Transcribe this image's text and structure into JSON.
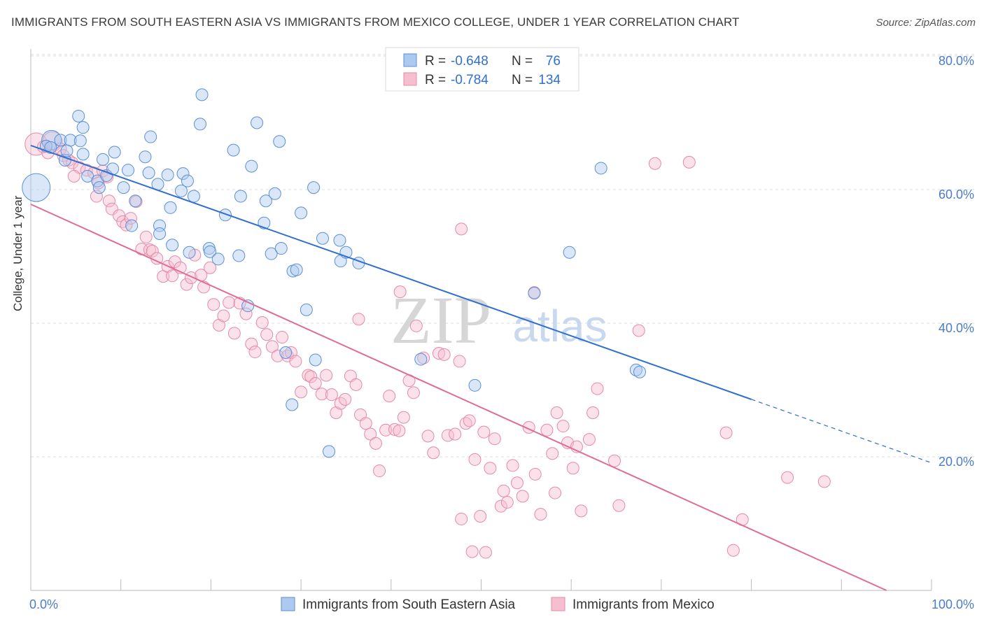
{
  "title": "IMMIGRANTS FROM SOUTH EASTERN ASIA VS IMMIGRANTS FROM MEXICO COLLEGE, UNDER 1 YEAR CORRELATION CHART",
  "source": "Source: ZipAtlas.com",
  "watermark": {
    "zip": "ZIP",
    "atlas": "atlas"
  },
  "colors": {
    "blue": "#5b8fd6",
    "blue_fill": "#aec9ef",
    "blue_line": "#2f6fcf",
    "pink": "#e48aa8",
    "pink_fill": "#f6bfd0",
    "pink_line": "#e06c96",
    "axis_text": "#4a7cc7",
    "grid": "#dddddd"
  },
  "legend_box": {
    "rows": [
      {
        "r_label": "R = ",
        "r_value": "-0.648",
        "n_label": "N = ",
        "n_value": "76"
      },
      {
        "r_label": "R = ",
        "r_value": "-0.784",
        "n_label": "N = ",
        "n_value": "134"
      }
    ]
  },
  "chart_data": {
    "type": "scatter",
    "xlabel": "",
    "ylabel": "College, Under 1 year",
    "xlim": [
      0,
      100
    ],
    "ylim": [
      0,
      85
    ],
    "x_tick_labels": [
      "0.0%",
      "100.0%"
    ],
    "y_ticks": [
      20,
      40,
      60,
      80
    ],
    "y_tick_labels": [
      "20.0%",
      "40.0%",
      "60.0%",
      "80.0%"
    ],
    "grid": true,
    "legend_position": "bottom",
    "series": [
      {
        "name": "Immigrants from South Eastern Asia",
        "color": "#5b8fd6",
        "trend": {
          "x0": 0,
          "y0": 66.6,
          "x1": 80,
          "y1": 28.6,
          "dash_to_x": 100,
          "dash_to_y": 19.1
        },
        "points": [
          {
            "x": 0.6,
            "y": 60.3,
            "s": 20
          },
          {
            "x": 2.3,
            "y": 67.4,
            "s": 14
          },
          {
            "x": 1.7,
            "y": 66.5
          },
          {
            "x": 3.3,
            "y": 67.4
          },
          {
            "x": 4.4,
            "y": 67.4
          },
          {
            "x": 3.8,
            "y": 64.4
          },
          {
            "x": 4.0,
            "y": 65.8
          },
          {
            "x": 5.8,
            "y": 69.3
          },
          {
            "x": 5.5,
            "y": 67.3
          },
          {
            "x": 5.3,
            "y": 71.0
          },
          {
            "x": 5.8,
            "y": 65.3
          },
          {
            "x": 6.3,
            "y": 62.0
          },
          {
            "x": 7.4,
            "y": 61.3
          },
          {
            "x": 7.6,
            "y": 60.3
          },
          {
            "x": 8.4,
            "y": 62.1
          },
          {
            "x": 8.0,
            "y": 64.5
          },
          {
            "x": 9.3,
            "y": 65.6
          },
          {
            "x": 9.1,
            "y": 63.1
          },
          {
            "x": 10.8,
            "y": 62.9
          },
          {
            "x": 10.3,
            "y": 60.3
          },
          {
            "x": 11.6,
            "y": 58.3
          },
          {
            "x": 12.7,
            "y": 64.9
          },
          {
            "x": 13.1,
            "y": 62.5
          },
          {
            "x": 13.3,
            "y": 67.9
          },
          {
            "x": 14.1,
            "y": 60.8
          },
          {
            "x": 14.3,
            "y": 54.6
          },
          {
            "x": 15.2,
            "y": 62.2
          },
          {
            "x": 15.5,
            "y": 57.3
          },
          {
            "x": 15.7,
            "y": 51.7
          },
          {
            "x": 16.7,
            "y": 59.8
          },
          {
            "x": 16.9,
            "y": 62.4
          },
          {
            "x": 17.4,
            "y": 61.3
          },
          {
            "x": 17.6,
            "y": 50.6
          },
          {
            "x": 18.1,
            "y": 59.0
          },
          {
            "x": 19.0,
            "y": 74.2
          },
          {
            "x": 18.8,
            "y": 69.8
          },
          {
            "x": 19.8,
            "y": 51.2
          },
          {
            "x": 19.9,
            "y": 50.7
          },
          {
            "x": 20.8,
            "y": 49.6
          },
          {
            "x": 21.6,
            "y": 56.2
          },
          {
            "x": 22.5,
            "y": 65.9
          },
          {
            "x": 23.1,
            "y": 50.1
          },
          {
            "x": 23.3,
            "y": 59.0
          },
          {
            "x": 24.5,
            "y": 63.5
          },
          {
            "x": 25.1,
            "y": 70.0
          },
          {
            "x": 25.9,
            "y": 55.0
          },
          {
            "x": 26.1,
            "y": 58.3
          },
          {
            "x": 26.7,
            "y": 50.4
          },
          {
            "x": 27.1,
            "y": 59.4
          },
          {
            "x": 27.8,
            "y": 51.2
          },
          {
            "x": 27.6,
            "y": 67.2
          },
          {
            "x": 29.1,
            "y": 47.8
          },
          {
            "x": 29.5,
            "y": 48.0
          },
          {
            "x": 30.0,
            "y": 56.5
          },
          {
            "x": 30.6,
            "y": 42.0
          },
          {
            "x": 31.4,
            "y": 60.3
          },
          {
            "x": 32.4,
            "y": 52.7
          },
          {
            "x": 34.3,
            "y": 52.4
          },
          {
            "x": 34.4,
            "y": 49.3
          },
          {
            "x": 35.0,
            "y": 50.6
          },
          {
            "x": 36.4,
            "y": 49.0
          },
          {
            "x": 24.1,
            "y": 42.6
          },
          {
            "x": 28.3,
            "y": 35.6
          },
          {
            "x": 29.0,
            "y": 27.8
          },
          {
            "x": 31.6,
            "y": 34.5
          },
          {
            "x": 33.1,
            "y": 20.8
          },
          {
            "x": 43.3,
            "y": 34.6
          },
          {
            "x": 49.3,
            "y": 30.7
          },
          {
            "x": 55.9,
            "y": 44.5
          },
          {
            "x": 59.8,
            "y": 50.6
          },
          {
            "x": 63.3,
            "y": 63.2
          },
          {
            "x": 67.2,
            "y": 33.0
          },
          {
            "x": 67.6,
            "y": 32.7
          },
          {
            "x": 14.3,
            "y": 53.4
          },
          {
            "x": 2.2,
            "y": 66.3
          },
          {
            "x": 11.2,
            "y": 54.6
          }
        ]
      },
      {
        "name": "Immigrants from Mexico",
        "color": "#e48aa8",
        "trend": {
          "x0": 0,
          "y0": 57.8,
          "x1": 95,
          "y1": 0
        },
        "points": [
          {
            "x": 0.6,
            "y": 66.8,
            "s": 16
          },
          {
            "x": 1.4,
            "y": 66.4
          },
          {
            "x": 2.4,
            "y": 67.2,
            "s": 14
          },
          {
            "x": 1.9,
            "y": 65.5
          },
          {
            "x": 3.3,
            "y": 66.1
          },
          {
            "x": 3.6,
            "y": 65.1
          },
          {
            "x": 4.2,
            "y": 64.4
          },
          {
            "x": 4.6,
            "y": 64.0
          },
          {
            "x": 5.4,
            "y": 63.3
          },
          {
            "x": 4.8,
            "y": 62.0
          },
          {
            "x": 6.2,
            "y": 62.9
          },
          {
            "x": 7.0,
            "y": 62.5
          },
          {
            "x": 7.5,
            "y": 61.0
          },
          {
            "x": 8.0,
            "y": 62.8
          },
          {
            "x": 8.5,
            "y": 61.9
          },
          {
            "x": 7.3,
            "y": 59.0
          },
          {
            "x": 8.7,
            "y": 58.3
          },
          {
            "x": 9.0,
            "y": 57.1
          },
          {
            "x": 9.8,
            "y": 56.1
          },
          {
            "x": 10.2,
            "y": 55.2
          },
          {
            "x": 10.6,
            "y": 54.7
          },
          {
            "x": 11.1,
            "y": 55.7
          },
          {
            "x": 11.7,
            "y": 58.2
          },
          {
            "x": 12.3,
            "y": 51.1
          },
          {
            "x": 12.8,
            "y": 52.9
          },
          {
            "x": 13.2,
            "y": 51.0
          },
          {
            "x": 13.5,
            "y": 50.8
          },
          {
            "x": 14.0,
            "y": 49.7
          },
          {
            "x": 14.7,
            "y": 47.0
          },
          {
            "x": 15.2,
            "y": 48.5
          },
          {
            "x": 15.7,
            "y": 47.1
          },
          {
            "x": 16.0,
            "y": 49.2
          },
          {
            "x": 16.6,
            "y": 48.3
          },
          {
            "x": 17.3,
            "y": 45.8
          },
          {
            "x": 17.8,
            "y": 46.8
          },
          {
            "x": 18.2,
            "y": 50.2
          },
          {
            "x": 18.9,
            "y": 47.2
          },
          {
            "x": 19.2,
            "y": 45.4
          },
          {
            "x": 19.9,
            "y": 48.3
          },
          {
            "x": 20.3,
            "y": 42.8
          },
          {
            "x": 20.9,
            "y": 39.7
          },
          {
            "x": 21.4,
            "y": 41.1
          },
          {
            "x": 22.0,
            "y": 43.1
          },
          {
            "x": 22.6,
            "y": 38.5
          },
          {
            "x": 23.2,
            "y": 43.0
          },
          {
            "x": 23.9,
            "y": 41.4
          },
          {
            "x": 24.5,
            "y": 36.9
          },
          {
            "x": 24.9,
            "y": 35.7
          },
          {
            "x": 25.7,
            "y": 40.1
          },
          {
            "x": 26.2,
            "y": 38.3
          },
          {
            "x": 26.8,
            "y": 36.5
          },
          {
            "x": 27.4,
            "y": 35.1
          },
          {
            "x": 27.9,
            "y": 37.9
          },
          {
            "x": 28.5,
            "y": 35.1
          },
          {
            "x": 28.9,
            "y": 35.6
          },
          {
            "x": 29.4,
            "y": 34.3
          },
          {
            "x": 30.0,
            "y": 29.7
          },
          {
            "x": 30.8,
            "y": 32.2
          },
          {
            "x": 31.1,
            "y": 32.0
          },
          {
            "x": 31.6,
            "y": 31.0
          },
          {
            "x": 32.3,
            "y": 29.4
          },
          {
            "x": 32.8,
            "y": 32.2
          },
          {
            "x": 33.4,
            "y": 29.3
          },
          {
            "x": 33.9,
            "y": 26.6
          },
          {
            "x": 34.4,
            "y": 28.0
          },
          {
            "x": 34.9,
            "y": 28.6
          },
          {
            "x": 35.5,
            "y": 32.1
          },
          {
            "x": 36.1,
            "y": 30.8
          },
          {
            "x": 36.6,
            "y": 26.3
          },
          {
            "x": 37.2,
            "y": 25.0
          },
          {
            "x": 37.7,
            "y": 23.4
          },
          {
            "x": 38.3,
            "y": 22.0
          },
          {
            "x": 38.7,
            "y": 17.9
          },
          {
            "x": 39.4,
            "y": 24.0
          },
          {
            "x": 39.8,
            "y": 29.1
          },
          {
            "x": 40.4,
            "y": 24.1
          },
          {
            "x": 40.9,
            "y": 23.9
          },
          {
            "x": 41.4,
            "y": 25.9
          },
          {
            "x": 42.0,
            "y": 31.4
          },
          {
            "x": 42.5,
            "y": 29.6
          },
          {
            "x": 42.8,
            "y": 39.6
          },
          {
            "x": 43.6,
            "y": 34.8
          },
          {
            "x": 44.1,
            "y": 23.1
          },
          {
            "x": 44.7,
            "y": 20.6
          },
          {
            "x": 45.3,
            "y": 35.5
          },
          {
            "x": 45.9,
            "y": 35.3
          },
          {
            "x": 46.3,
            "y": 23.2
          },
          {
            "x": 47.1,
            "y": 23.4
          },
          {
            "x": 47.6,
            "y": 34.3
          },
          {
            "x": 48.3,
            "y": 25.0
          },
          {
            "x": 48.7,
            "y": 25.4
          },
          {
            "x": 49.3,
            "y": 19.6
          },
          {
            "x": 49.9,
            "y": 11.1
          },
          {
            "x": 50.3,
            "y": 23.7
          },
          {
            "x": 51.0,
            "y": 18.3
          },
          {
            "x": 51.5,
            "y": 22.7
          },
          {
            "x": 52.2,
            "y": 12.6
          },
          {
            "x": 52.9,
            "y": 13.2
          },
          {
            "x": 53.5,
            "y": 18.7
          },
          {
            "x": 54.0,
            "y": 16.1
          },
          {
            "x": 54.6,
            "y": 14.1
          },
          {
            "x": 55.3,
            "y": 24.4
          },
          {
            "x": 56.0,
            "y": 17.4
          },
          {
            "x": 56.6,
            "y": 11.4
          },
          {
            "x": 57.3,
            "y": 24.0
          },
          {
            "x": 57.9,
            "y": 20.5
          },
          {
            "x": 58.4,
            "y": 26.6
          },
          {
            "x": 59.1,
            "y": 24.6
          },
          {
            "x": 59.6,
            "y": 22.1
          },
          {
            "x": 60.2,
            "y": 18.3
          },
          {
            "x": 61.1,
            "y": 11.9
          },
          {
            "x": 62.0,
            "y": 22.6
          },
          {
            "x": 62.9,
            "y": 30.2
          },
          {
            "x": 64.8,
            "y": 19.4
          },
          {
            "x": 65.3,
            "y": 12.7
          },
          {
            "x": 67.5,
            "y": 38.9
          },
          {
            "x": 69.3,
            "y": 63.9
          },
          {
            "x": 73.1,
            "y": 64.1
          },
          {
            "x": 77.2,
            "y": 23.6
          },
          {
            "x": 78.0,
            "y": 6.0
          },
          {
            "x": 79.0,
            "y": 10.6
          },
          {
            "x": 84.0,
            "y": 16.9
          },
          {
            "x": 88.1,
            "y": 16.3
          },
          {
            "x": 41.0,
            "y": 44.7
          },
          {
            "x": 47.8,
            "y": 54.1
          },
          {
            "x": 55.9,
            "y": 44.6
          },
          {
            "x": 49.0,
            "y": 5.8
          },
          {
            "x": 50.5,
            "y": 5.7
          },
          {
            "x": 47.8,
            "y": 10.7
          },
          {
            "x": 62.4,
            "y": 26.6
          },
          {
            "x": 36.4,
            "y": 40.6
          },
          {
            "x": 60.6,
            "y": 21.5
          },
          {
            "x": 52.5,
            "y": 14.9
          },
          {
            "x": 58.2,
            "y": 14.6
          }
        ]
      }
    ]
  }
}
